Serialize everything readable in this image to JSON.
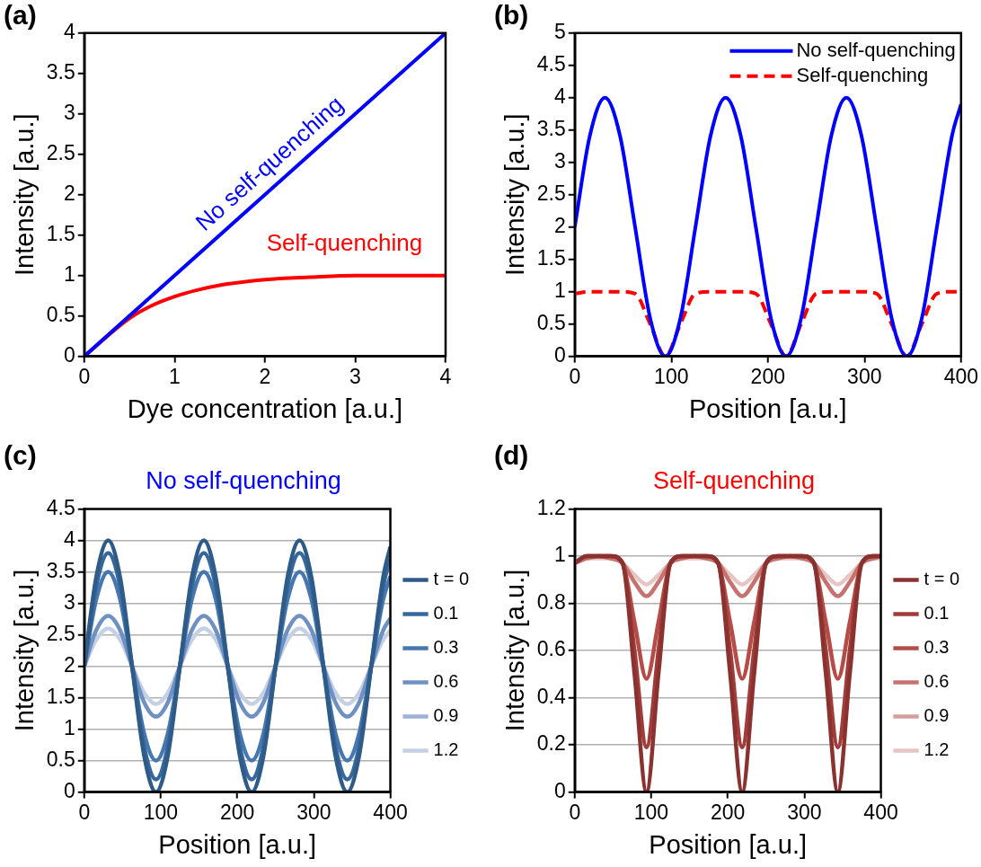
{
  "chart_data": [
    {
      "type": "line",
      "xlabel": "Dye concentration [a.u.]",
      "ylabel": "Intensity [a.u.]",
      "xlim": [
        0,
        4
      ],
      "xticks": [
        0,
        1,
        2,
        3,
        4
      ],
      "ylim": [
        0,
        4
      ],
      "yticks": [
        0,
        0.5,
        1,
        1.5,
        2,
        2.5,
        3,
        3.5,
        4
      ],
      "marker": "none",
      "grid": false,
      "legend": false,
      "annotations": [
        "(a)",
        "No self-quenching",
        "Self-quenching"
      ],
      "series": [
        {
          "color": "#0000ff",
          "x": [
            0,
            4
          ],
          "values": [
            0,
            4
          ]
        },
        {
          "color": "#ff0000",
          "x": [
            0,
            0.25,
            0.5,
            0.75,
            1,
            1.25,
            1.5,
            2,
            2.5,
            3,
            3.5,
            4
          ],
          "values": [
            0,
            null,
            0.47,
            0.63,
            0.74,
            0.82,
            0.88,
            0.95,
            0.98,
            1,
            1,
            1
          ]
        }
      ]
    },
    {
      "type": "line",
      "xlabel": "Position [a.u.]",
      "ylabel": "Intensity [a.u.]",
      "xlim": [
        0,
        400
      ],
      "xticks": [
        0,
        100,
        200,
        300,
        400
      ],
      "ylim": [
        0,
        5
      ],
      "yticks": [
        0,
        0.5,
        1,
        1.5,
        2,
        2.5,
        3,
        3.5,
        4,
        4.5,
        5
      ],
      "marker": "none",
      "grid": false,
      "legend": "top right",
      "annotations": [
        "(b)"
      ],
      "x": [
        0,
        15.6,
        31.3,
        46.9,
        62.5,
        78.1,
        93.8,
        109.4,
        125,
        140.6,
        156.3,
        171.9,
        187.5,
        203.1,
        218.8,
        234.4,
        250,
        265.6,
        281.3,
        296.9,
        312.5,
        328.1,
        343.8,
        359.4,
        375,
        390.6,
        400
      ],
      "series": [
        {
          "name": "No self-quenching",
          "color": "#0000ff",
          "line_style": "solid",
          "values": [
            2,
            3.41,
            4,
            3.41,
            2,
            0.59,
            0,
            0.59,
            2,
            3.41,
            4,
            3.41,
            2,
            0.59,
            0,
            0.59,
            2,
            3.41,
            4,
            3.41,
            2,
            0.59,
            0,
            0.59,
            2,
            3.41,
            3.9
          ]
        },
        {
          "name": "Self-quenching",
          "color": "#ff0000",
          "line_style": "dashed",
          "values": [
            0.97,
            1,
            1,
            1,
            0.97,
            0.5,
            0,
            0.5,
            0.97,
            1,
            1,
            1,
            0.97,
            0.5,
            0,
            0.5,
            0.97,
            1,
            1,
            1,
            0.97,
            0.5,
            0,
            0.5,
            0.97,
            1,
            1
          ]
        }
      ]
    },
    {
      "type": "line",
      "title": "No self-quenching",
      "xlabel": "Position [a.u.]",
      "ylabel": "Intensity [a.u.]",
      "xlim": [
        0,
        400
      ],
      "xticks": [
        0,
        100,
        200,
        300,
        400
      ],
      "ylim": [
        0,
        4.5
      ],
      "yticks": [
        0,
        0.5,
        1,
        1.5,
        2,
        2.5,
        3,
        3.5,
        4,
        4.5
      ],
      "marker": "none",
      "grid": "y",
      "legend": "right",
      "annotations": [
        "(c)"
      ],
      "x": [
        0,
        15.6,
        31.3,
        46.9,
        62.5,
        78.1,
        93.8,
        109.4,
        125,
        140.6,
        156.3,
        171.9,
        187.5,
        203.1,
        218.8,
        234.4,
        250,
        265.6,
        281.3,
        296.9,
        312.5,
        328.1,
        343.8,
        359.4,
        375,
        390.6,
        400
      ],
      "series": [
        {
          "name": "t = 0",
          "color": "#2f5b88",
          "values": [
            2,
            3.41,
            4,
            3.41,
            2,
            0.59,
            0,
            0.59,
            2,
            3.41,
            4,
            3.41,
            2,
            0.59,
            0,
            0.59,
            2,
            3.41,
            4,
            3.41,
            2,
            0.59,
            0,
            0.59,
            2,
            3.41,
            3.9
          ]
        },
        {
          "name": "0.1",
          "color": "#36689c",
          "values": [
            2,
            3.27,
            3.8,
            3.27,
            2,
            0.73,
            0.2,
            0.73,
            2,
            3.27,
            3.8,
            3.27,
            2,
            0.73,
            0.2,
            0.73,
            2,
            3.27,
            3.8,
            3.27,
            2,
            0.73,
            0.2,
            0.73,
            2,
            3.27,
            3.71
          ]
        },
        {
          "name": "0.3",
          "color": "#4677b0",
          "values": [
            2,
            3.06,
            3.5,
            3.06,
            2,
            0.94,
            0.5,
            0.94,
            2,
            3.06,
            3.5,
            3.06,
            2,
            0.94,
            0.5,
            0.94,
            2,
            3.06,
            3.5,
            3.06,
            2,
            0.94,
            0.5,
            0.94,
            2,
            3.06,
            3.43
          ]
        },
        {
          "name": "0.6",
          "color": "#6f90c2",
          "values": [
            2,
            2.57,
            2.8,
            2.57,
            2,
            1.43,
            1.2,
            1.43,
            2,
            2.57,
            2.8,
            2.57,
            2,
            1.43,
            1.2,
            1.43,
            2,
            2.57,
            2.8,
            2.57,
            2,
            1.43,
            1.2,
            1.43,
            2,
            2.57,
            2.76
          ]
        },
        {
          "name": "0.9",
          "color": "#9db2d6",
          "values": [
            null,
            null,
            null,
            null,
            null,
            null,
            null,
            null,
            null,
            null,
            null,
            null,
            null,
            null,
            null,
            null,
            null,
            null,
            null,
            null,
            null,
            null,
            null,
            null,
            null,
            null,
            null
          ]
        },
        {
          "name": "1.2",
          "color": "#c4d0e4",
          "values": [
            2,
            2.42,
            2.6,
            2.42,
            2,
            1.58,
            1.4,
            1.58,
            2,
            2.42,
            2.6,
            2.42,
            2,
            1.58,
            1.4,
            1.58,
            2,
            2.42,
            2.6,
            2.42,
            2,
            1.58,
            1.4,
            1.58,
            2,
            2.42,
            2.57
          ]
        }
      ]
    },
    {
      "type": "line",
      "title": "Self-quenching",
      "xlabel": "Position [a.u.]",
      "ylabel": "Intensity [a.u.]",
      "xlim": [
        0,
        400
      ],
      "xticks": [
        0,
        100,
        200,
        300,
        400
      ],
      "ylim": [
        0,
        1.2
      ],
      "yticks": [
        0,
        0.2,
        0.4,
        0.6,
        0.8,
        1,
        1.2
      ],
      "marker": "none",
      "grid": "y",
      "legend": "right",
      "annotations": [
        "(d)"
      ],
      "x": [
        0,
        15.6,
        31.3,
        46.9,
        62.5,
        78.1,
        93.8,
        109.4,
        125,
        140.6,
        156.3,
        171.9,
        187.5,
        203.1,
        218.8,
        234.4,
        250,
        265.6,
        281.3,
        296.9,
        312.5,
        328.1,
        343.8,
        359.4,
        375,
        390.6,
        400
      ],
      "series": [
        {
          "name": "t = 0",
          "color": "#8a3230",
          "values": [
            0.97,
            1,
            1,
            1,
            0.97,
            0.5,
            0,
            0.5,
            0.97,
            1,
            1,
            1,
            0.97,
            0.5,
            0,
            0.5,
            0.97,
            1,
            1,
            1,
            0.97,
            0.5,
            0,
            0.5,
            0.97,
            1,
            1
          ]
        },
        {
          "name": "0.1",
          "color": "#a03d3a",
          "values": [
            0.97,
            1,
            1,
            1,
            0.97,
            0.6,
            0.19,
            0.6,
            0.97,
            1,
            1,
            1,
            0.97,
            0.6,
            0.19,
            0.6,
            0.97,
            1,
            1,
            1,
            0.97,
            0.6,
            0.19,
            0.6,
            0.97,
            1,
            1
          ]
        },
        {
          "name": "0.3",
          "color": "#b54c48",
          "values": [
            0.97,
            1,
            1,
            1,
            0.97,
            0.72,
            0.48,
            0.72,
            0.97,
            1,
            1,
            1,
            0.97,
            0.72,
            0.48,
            0.72,
            0.97,
            1,
            1,
            1,
            0.97,
            0.72,
            0.48,
            0.72,
            0.97,
            1,
            1
          ]
        },
        {
          "name": "0.6",
          "color": "#c67370",
          "values": [
            0.97,
            0.99,
            1,
            0.99,
            0.97,
            0.89,
            0.83,
            0.89,
            0.97,
            0.99,
            1,
            0.99,
            0.97,
            0.89,
            0.83,
            0.89,
            0.97,
            0.99,
            1,
            0.99,
            0.97,
            0.89,
            0.83,
            0.89,
            0.97,
            0.99,
            1
          ]
        },
        {
          "name": "0.9",
          "color": "#d69f9d",
          "values": [
            null,
            null,
            null,
            null,
            null,
            null,
            null,
            null,
            null,
            null,
            null,
            null,
            null,
            null,
            null,
            null,
            null,
            null,
            null,
            null,
            null,
            null,
            null,
            null,
            null,
            null,
            null
          ]
        },
        {
          "name": "1.2",
          "color": "#e6c5c4",
          "values": [
            0.97,
            0.99,
            0.99,
            0.99,
            0.97,
            0.92,
            0.88,
            0.92,
            0.97,
            0.99,
            0.99,
            0.99,
            0.97,
            0.92,
            0.88,
            0.92,
            0.97,
            0.99,
            0.99,
            0.99,
            0.97,
            0.92,
            0.88,
            0.92,
            0.97,
            0.99,
            0.99
          ]
        }
      ]
    }
  ]
}
